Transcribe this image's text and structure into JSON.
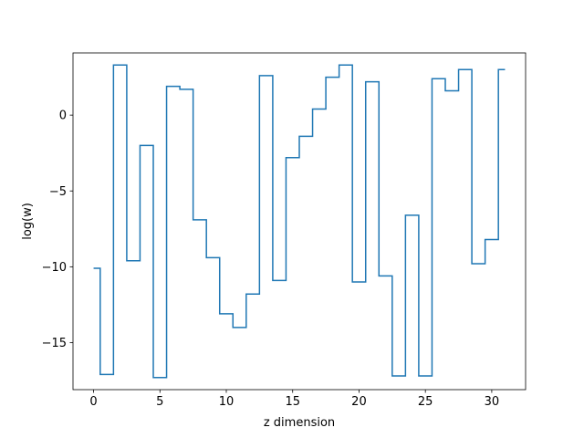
{
  "chart_data": {
    "type": "line",
    "drawstyle": "steps-mid",
    "title": "",
    "xlabel": "z dimension",
    "ylabel": "log(w)",
    "xlim": [
      -1.55,
      32.55
    ],
    "ylim": [
      -18.1,
      4.1
    ],
    "xticks": [
      0,
      5,
      10,
      15,
      20,
      25,
      30
    ],
    "yticks": [
      -15,
      -10,
      -5,
      0
    ],
    "ytick_labels": [
      "−15",
      "−10",
      "−5",
      "0"
    ],
    "grid": false,
    "legend": "none",
    "color": "#1f77b4",
    "series": [
      {
        "x": [
          0,
          1,
          2,
          3,
          4,
          5,
          6,
          7,
          8,
          9,
          10,
          11,
          12,
          13,
          14,
          15,
          16,
          17,
          18,
          19,
          20,
          21,
          22,
          23,
          24,
          25,
          26,
          27,
          28,
          29,
          30,
          31
        ],
        "values": [
          -10.1,
          -17.1,
          3.3,
          -9.6,
          -2.0,
          -17.3,
          1.9,
          1.7,
          -6.9,
          -9.4,
          -13.1,
          -14.0,
          -11.8,
          2.6,
          -10.9,
          -2.8,
          -1.4,
          0.4,
          2.5,
          3.3,
          -11.0,
          2.2,
          -10.6,
          -17.2,
          -6.6,
          -17.2,
          2.4,
          1.6,
          3.0,
          -9.8,
          -8.2,
          3.0
        ]
      }
    ]
  }
}
